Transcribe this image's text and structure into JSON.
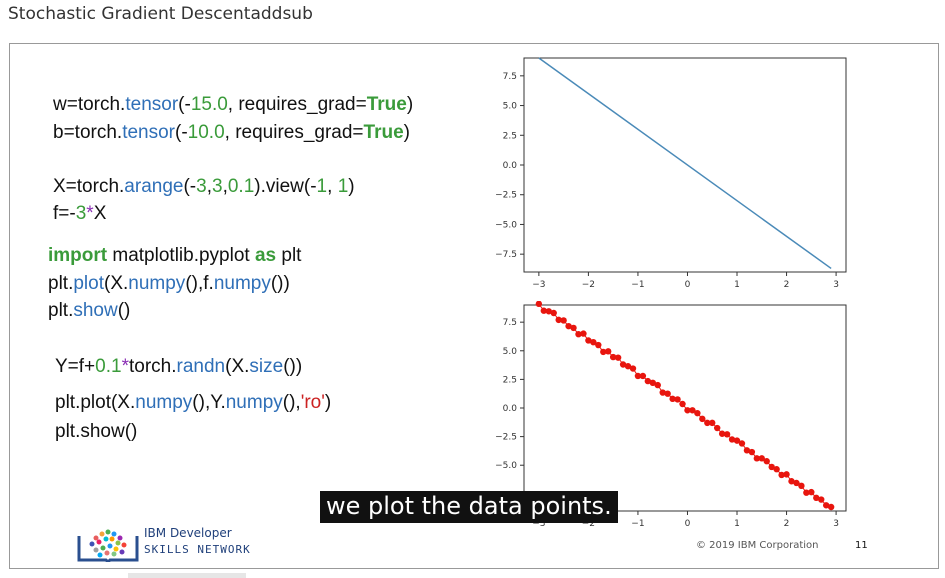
{
  "page_title": "Stochastic Gradient Descentaddsub",
  "code": {
    "l1": {
      "a": "w=torch.",
      "b": "tensor",
      "c": "(-",
      "d": "15.0",
      "e": ", requires_grad=",
      "f": "True",
      "g": ")"
    },
    "l2": {
      "a": "b=torch.",
      "b": "tensor",
      "c": "(-",
      "d": "10.0",
      "e": ", requires_grad=",
      "f": "True",
      "g": ")"
    },
    "l3": {
      "a": "X=torch.",
      "b": "arange",
      "c": "(-",
      "d": "3",
      "e": ",",
      "f": "3",
      "g": ",",
      "h": "0.1",
      "i": ").view(-",
      "j": "1",
      "k": ", ",
      "l": "1",
      "m": ")"
    },
    "l4": {
      "a": "f=-",
      "b": "3",
      "c": "*",
      "d": "X"
    },
    "l5": {
      "a": "import",
      "b": " matplotlib.pyplot ",
      "c": "as",
      "d": " plt"
    },
    "l6": {
      "a": "plt.",
      "b": "plot",
      "c": "(X.",
      "d": "numpy",
      "e": "(),f.",
      "f": "numpy",
      "g": "())"
    },
    "l7": {
      "a": "plt.",
      "b": "show",
      "c": "()"
    },
    "l8": {
      "a": "Y=f+",
      "b": "0.1",
      "c": "*",
      "d": "torch.",
      "e": "randn",
      "f": "(X.",
      "g": "size",
      "h": "())"
    },
    "l9": {
      "a": "plt.plot(X.",
      "b": "numpy",
      "c": "(),Y.",
      "d": "numpy",
      "e": "(),",
      "f": "'ro'",
      "g": ")"
    },
    "l10": {
      "a": "plt.show()"
    }
  },
  "chart_data": [
    {
      "type": "line",
      "x_range": [
        -3,
        2.9
      ],
      "y_range": [
        -8.7,
        9
      ],
      "ylim": [
        -9.0,
        9.0
      ],
      "xticks": [
        "−3",
        "−2",
        "−1",
        "0",
        "1",
        "2",
        "3"
      ],
      "yticks": [
        "7.5",
        "5.0",
        "2.5",
        "0.0",
        "−2.5",
        "−5.0",
        "−7.5"
      ],
      "line_color": "#4a8ab8"
    },
    {
      "type": "scatter",
      "ylim": [
        -9.0,
        9.0
      ],
      "xticks": [
        "−3",
        "−2",
        "−1",
        "0",
        "1",
        "2",
        "3"
      ],
      "yticks": [
        "7.5",
        "5.0",
        "2.5",
        "0.0",
        "−2.5",
        "−5.0"
      ],
      "point_color": "#e8150e",
      "x_start": -3.0,
      "x_step": 0.1,
      "count": 60,
      "noise": [
        0.1,
        -0.2,
        0.05,
        0.2,
        -0.1,
        0.15,
        -0.05,
        0.1,
        -0.15,
        0.2,
        -0.1,
        0.05,
        0.1,
        -0.2,
        0.15,
        -0.05,
        0.2,
        -0.1,
        0.05,
        0.15,
        -0.2,
        0.1,
        -0.05,
        0.1,
        0.2,
        -0.15,
        0.05,
        -0.1,
        0.15,
        0.05,
        -0.2,
        0.1,
        0.15,
        -0.05,
        -0.1,
        0.2,
        0.05,
        -0.15,
        0.1,
        -0.05,
        0.15,
        0.2,
        -0.1,
        0.05,
        -0.2,
        0.1,
        0.15,
        -0.05,
        0.05,
        -0.15,
        0.2,
        -0.1,
        0.05,
        0.1,
        -0.2,
        0.15,
        -0.05,
        0.1,
        -0.1,
        0.05
      ]
    }
  ],
  "logo": {
    "line1": "IBM Developer",
    "line2": "SKILLS NETWORK"
  },
  "footer": {
    "copyright": "© 2019 IBM Corporation",
    "page": "11"
  },
  "caption": "we plot the data points."
}
